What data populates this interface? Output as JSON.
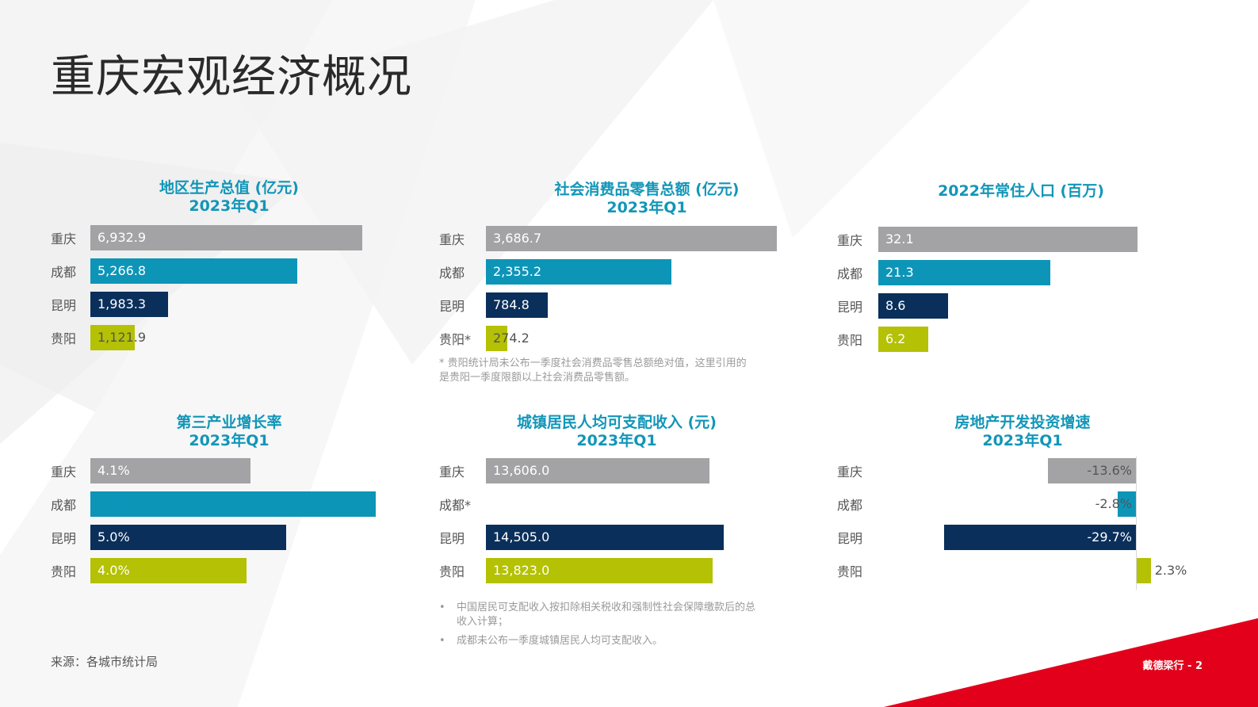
{
  "page": {
    "title": "重庆宏观经济概况",
    "source": "来源：各城市统计局",
    "footer": "戴德梁行 - 2",
    "colors": {
      "gray": "#a3a3a5",
      "teal": "#0d95b8",
      "navy": "#0a2f5a",
      "lime": "#b4c104",
      "title_blue": "#1296b8",
      "red": "#e3001b"
    }
  },
  "chart_data": [
    {
      "id": "gdp",
      "type": "bar",
      "orientation": "horizontal",
      "title_lines": [
        "地区生产总值 (亿元)",
        "2023年Q1"
      ],
      "categories": [
        "重庆",
        "成都",
        "昆明",
        "贵阳"
      ],
      "values": [
        6932.9,
        5266.8,
        1983.3,
        1121.9
      ],
      "labels": [
        "6,932.9",
        "5,266.8",
        "1,983.3",
        "1,121.9"
      ],
      "colors": [
        "#a3a3a5",
        "#0d95b8",
        "#0a2f5a",
        "#b4c104"
      ],
      "label_colors": [
        "#ffffff",
        "#ffffff",
        "#ffffff",
        "#555555"
      ],
      "xlim": [
        0,
        6932.9
      ]
    },
    {
      "id": "retail",
      "type": "bar",
      "orientation": "horizontal",
      "title_lines": [
        "社会消费品零售总额 (亿元)",
        "2023年Q1"
      ],
      "categories": [
        "重庆",
        "成都",
        "昆明",
        "贵阳*"
      ],
      "values": [
        3686.7,
        2355.2,
        784.8,
        274.2
      ],
      "labels": [
        "3,686.7",
        "2,355.2",
        "784.8",
        "274.2"
      ],
      "colors": [
        "#a3a3a5",
        "#0d95b8",
        "#0a2f5a",
        "#b4c104"
      ],
      "label_colors": [
        "#ffffff",
        "#ffffff",
        "#ffffff",
        "#555555"
      ],
      "xlim": [
        0,
        3686.7
      ],
      "notes": [
        "* 贵阳统计局未公布一季度社会消费品零售总额绝对值，这里引用的是贵阳一季度限额以上社会消费品零售额。"
      ]
    },
    {
      "id": "population",
      "type": "bar",
      "orientation": "horizontal",
      "title_lines": [
        "2022年常住人口 (百万)"
      ],
      "categories": [
        "重庆",
        "成都",
        "昆明",
        "贵阳"
      ],
      "values": [
        32.1,
        21.3,
        8.6,
        6.2
      ],
      "labels": [
        "32.1",
        "21.3",
        "8.6",
        "6.2"
      ],
      "colors": [
        "#a3a3a5",
        "#0d95b8",
        "#0a2f5a",
        "#b4c104"
      ],
      "label_colors": [
        "#ffffff",
        "#ffffff",
        "#ffffff",
        "#ffffff"
      ],
      "xlim": [
        0,
        32.1
      ]
    },
    {
      "id": "tertiary",
      "type": "bar",
      "orientation": "horizontal",
      "title_lines": [
        "第三产业增长率",
        "2023年Q1"
      ],
      "categories": [
        "重庆",
        "成都",
        "昆明",
        "贵阳"
      ],
      "values": [
        4.1,
        7.3,
        5.0,
        4.0
      ],
      "labels": [
        "4.1%",
        "7.3%",
        "5.0%",
        "4.0%"
      ],
      "colors": [
        "#a3a3a5",
        "#0d95b8",
        "#0a2f5a",
        "#b4c104"
      ],
      "label_colors": [
        "#ffffff",
        "#0d95b8",
        "#ffffff",
        "#ffffff"
      ],
      "xlim": [
        0,
        7.3
      ]
    },
    {
      "id": "income",
      "type": "bar",
      "orientation": "horizontal",
      "title_lines": [
        "城镇居民人均可支配收入 (元)",
        "2023年Q1"
      ],
      "categories": [
        "重庆",
        "成都*",
        "昆明",
        "贵阳"
      ],
      "values": [
        13606.0,
        null,
        14505.0,
        13823.0
      ],
      "labels": [
        "13,606.0",
        "",
        "14,505.0",
        "13,823.0"
      ],
      "colors": [
        "#a3a3a5",
        "#0d95b8",
        "#0a2f5a",
        "#b4c104"
      ],
      "label_colors": [
        "#ffffff",
        "#ffffff",
        "#ffffff",
        "#ffffff"
      ],
      "xlim": [
        0,
        29000
      ],
      "notes": [
        "中国居民可支配收入按扣除相关税收和强制性社会保障缴款后的总收入计算；",
        "成都未公布一季度城镇居民人均可支配收入。"
      ]
    },
    {
      "id": "realestate",
      "type": "bar",
      "orientation": "horizontal",
      "title_lines": [
        "房地产开发投资增速",
        "2023年Q1"
      ],
      "categories": [
        "重庆",
        "成都",
        "昆明",
        "贵阳"
      ],
      "values": [
        -13.6,
        -2.8,
        -29.7,
        2.3
      ],
      "labels": [
        "-13.6%",
        "-2.8%",
        "-29.7%",
        "2.3%"
      ],
      "colors": [
        "#a3a3a5",
        "#0d95b8",
        "#0a2f5a",
        "#b4c104"
      ],
      "label_colors": [
        "#555555",
        "#555555",
        "#ffffff",
        "#555555"
      ],
      "xlim": [
        -29.7,
        2.3
      ]
    }
  ]
}
